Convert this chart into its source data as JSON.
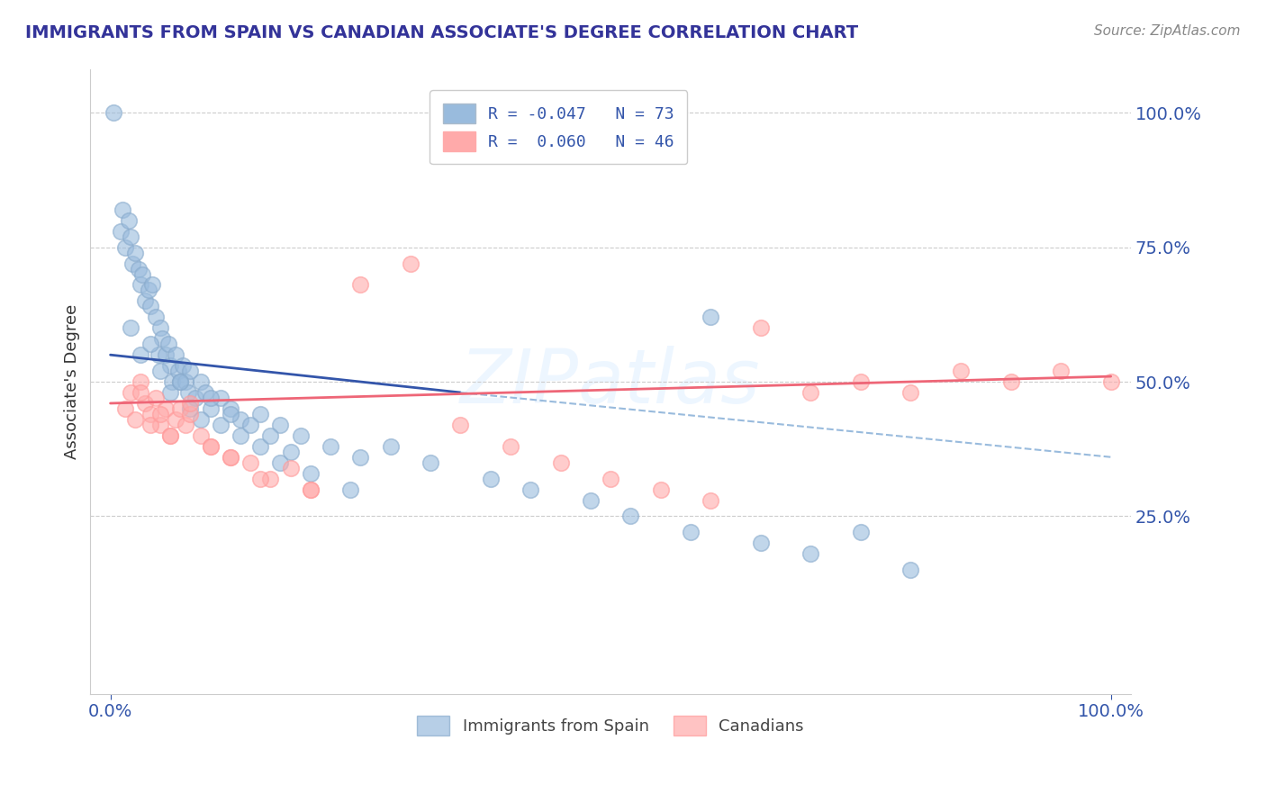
{
  "title": "IMMIGRANTS FROM SPAIN VS CANADIAN ASSOCIATE'S DEGREE CORRELATION CHART",
  "source": "Source: ZipAtlas.com",
  "ylabel": "Associate's Degree",
  "blue_color": "#99BBDD",
  "blue_edge_color": "#88AACC",
  "pink_color": "#FFAAAA",
  "pink_edge_color": "#FF9999",
  "blue_line_color": "#3355AA",
  "pink_line_color": "#EE6677",
  "dashed_line_color": "#99BBDD",
  "grid_color": "#CCCCCC",
  "title_color": "#333399",
  "tick_color": "#3355AA",
  "watermark_color": "#DDDDEE",
  "blue_line_x0": 0,
  "blue_line_y0": 55,
  "blue_line_x1": 35,
  "blue_line_y1": 48,
  "blue_dash_x0": 35,
  "blue_dash_y0": 48,
  "blue_dash_x1": 100,
  "blue_dash_y1": 36,
  "pink_line_x0": 0,
  "pink_line_y0": 46,
  "pink_line_x1": 100,
  "pink_line_y1": 51,
  "xlim": [
    -2,
    102
  ],
  "ylim": [
    -8,
    108
  ],
  "xticks": [
    0,
    100
  ],
  "yticks": [
    25,
    50,
    75,
    100
  ],
  "blue_pts_x": [
    0.3,
    1.0,
    1.2,
    1.5,
    1.8,
    2.0,
    2.2,
    2.5,
    2.8,
    3.0,
    3.2,
    3.5,
    3.8,
    4.0,
    4.2,
    4.5,
    4.8,
    5.0,
    5.2,
    5.5,
    5.8,
    6.0,
    6.2,
    6.5,
    6.8,
    7.0,
    7.2,
    7.5,
    7.8,
    8.0,
    8.5,
    9.0,
    9.5,
    10.0,
    11.0,
    12.0,
    13.0,
    15.0,
    17.0,
    19.0,
    22.0,
    25.0,
    28.0,
    32.0,
    38.0,
    42.0,
    48.0,
    52.0,
    58.0,
    65.0,
    70.0,
    75.0,
    80.0,
    60.0,
    2.0,
    3.0,
    4.0,
    5.0,
    6.0,
    7.0,
    8.0,
    9.0,
    10.0,
    11.0,
    12.0,
    13.0,
    14.0,
    15.0,
    16.0,
    17.0,
    18.0,
    20.0,
    24.0
  ],
  "blue_pts_y": [
    100.0,
    78.0,
    82.0,
    75.0,
    80.0,
    77.0,
    72.0,
    74.0,
    71.0,
    68.0,
    70.0,
    65.0,
    67.0,
    64.0,
    68.0,
    62.0,
    55.0,
    60.0,
    58.0,
    55.0,
    57.0,
    53.0,
    50.0,
    55.0,
    52.0,
    50.0,
    53.0,
    50.0,
    48.0,
    52.0,
    47.0,
    50.0,
    48.0,
    45.0,
    47.0,
    45.0,
    43.0,
    44.0,
    42.0,
    40.0,
    38.0,
    36.0,
    38.0,
    35.0,
    32.0,
    30.0,
    28.0,
    25.0,
    22.0,
    20.0,
    18.0,
    22.0,
    15.0,
    62.0,
    60.0,
    55.0,
    57.0,
    52.0,
    48.0,
    50.0,
    45.0,
    43.0,
    47.0,
    42.0,
    44.0,
    40.0,
    42.0,
    38.0,
    40.0,
    35.0,
    37.0,
    33.0,
    30.0
  ],
  "pink_pts_x": [
    1.5,
    2.0,
    2.5,
    3.0,
    3.5,
    4.0,
    4.5,
    5.0,
    5.5,
    6.0,
    6.5,
    7.0,
    7.5,
    8.0,
    9.0,
    10.0,
    12.0,
    14.0,
    16.0,
    18.0,
    20.0,
    25.0,
    30.0,
    35.0,
    40.0,
    45.0,
    50.0,
    55.0,
    60.0,
    65.0,
    70.0,
    75.0,
    80.0,
    85.0,
    90.0,
    95.0,
    100.0,
    3.0,
    4.0,
    5.0,
    6.0,
    8.0,
    10.0,
    12.0,
    15.0,
    20.0
  ],
  "pink_pts_y": [
    45.0,
    48.0,
    43.0,
    50.0,
    46.0,
    44.0,
    47.0,
    42.0,
    45.0,
    40.0,
    43.0,
    45.0,
    42.0,
    44.0,
    40.0,
    38.0,
    36.0,
    35.0,
    32.0,
    34.0,
    30.0,
    68.0,
    72.0,
    42.0,
    38.0,
    35.0,
    32.0,
    30.0,
    28.0,
    60.0,
    48.0,
    50.0,
    48.0,
    52.0,
    50.0,
    52.0,
    50.0,
    48.0,
    42.0,
    44.0,
    40.0,
    46.0,
    38.0,
    36.0,
    32.0,
    30.0
  ]
}
